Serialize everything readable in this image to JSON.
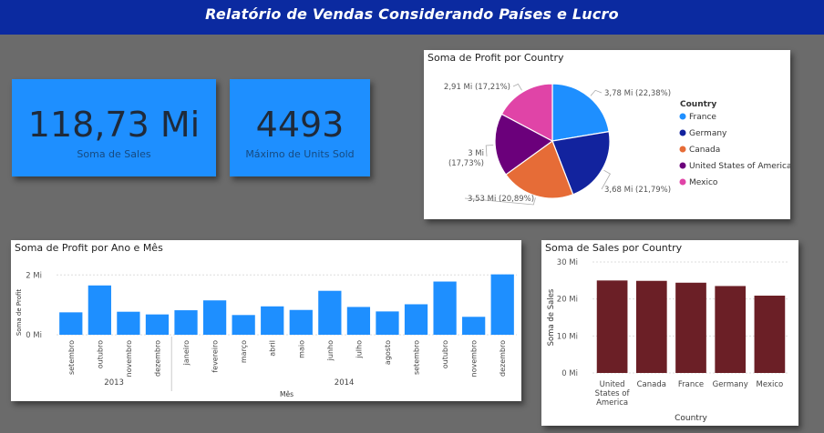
{
  "header": {
    "title": "Relatório de Vendas Considerando Países e Lucro"
  },
  "kpis": [
    {
      "value": "118,73 Mi",
      "label": "Soma de  Sales"
    },
    {
      "value": "4493",
      "label": "Máximo de Units Sold"
    }
  ],
  "colors": {
    "header_bg": "#0b2aa0",
    "kpi_bg": "#1e8fff",
    "bar_blue": "#1e8fff",
    "bar_maroon": "#6b1f26",
    "canvas_bg": "#6b6b6b"
  },
  "pie": {
    "title": "Soma de Profit por Country",
    "legend_title": "Country",
    "slices": [
      {
        "name": "France",
        "value": 3.78,
        "label": "3,78 Mi (22,38%)",
        "color": "#1e8fff"
      },
      {
        "name": "Germany",
        "value": 3.68,
        "label": "3,68 Mi (21,79%)",
        "color": "#12239e"
      },
      {
        "name": "Canada",
        "value": 3.53,
        "label": "3,53 Mi (20,89%)",
        "color": "#e66c37"
      },
      {
        "name": "United States of America",
        "value": 3.0,
        "label": "3 Mi (17,73%)",
        "color": "#6b007b"
      },
      {
        "name": "Mexico",
        "value": 2.91,
        "label": "2,91 Mi (17,21%)",
        "color": "#e044a7"
      }
    ]
  },
  "chart_data": [
    {
      "type": "bar",
      "title": "Soma de Profit por Ano e Mês",
      "xlabel": "Mês",
      "ylabel": "Soma de Profit",
      "yticks": [
        "0 Mi",
        "2 Mi"
      ],
      "ylim": [
        0,
        2.1
      ],
      "categories": [
        "setembro",
        "outubro",
        "novembro",
        "dezembro",
        "janeiro",
        "fevereiro",
        "março",
        "abril",
        "maio",
        "junho",
        "julho",
        "agosto",
        "setembro",
        "outubro",
        "novembro",
        "dezembro"
      ],
      "years": [
        {
          "label": "2013",
          "count": 4
        },
        {
          "label": "2014",
          "count": 12
        }
      ],
      "values": [
        0.75,
        1.65,
        0.77,
        0.68,
        0.82,
        1.15,
        0.66,
        0.95,
        0.83,
        1.47,
        0.93,
        0.78,
        1.02,
        1.78,
        0.6,
        2.02
      ],
      "color": "#1e8fff"
    },
    {
      "type": "bar",
      "title": "Soma de Sales por Country",
      "xlabel": "Country",
      "ylabel": "Soma de Sales",
      "yticks": [
        "0 Mi",
        "10 Mi",
        "20 Mi",
        "30 Mi"
      ],
      "ylim": [
        0,
        30
      ],
      "categories": [
        [
          "United",
          "States of",
          "America"
        ],
        [
          "Canada"
        ],
        [
          "France"
        ],
        [
          "Germany"
        ],
        [
          "Mexico"
        ]
      ],
      "values": [
        25.0,
        24.9,
        24.4,
        23.5,
        20.9
      ],
      "color": "#6b1f26"
    }
  ]
}
